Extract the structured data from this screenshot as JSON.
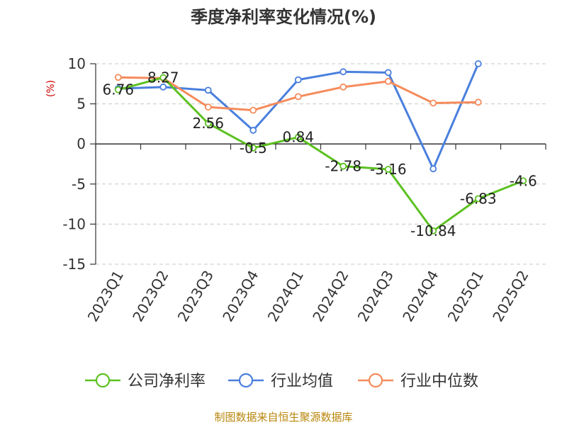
{
  "chart_data": {
    "type": "line",
    "title": "季度净利率变化情况(%)",
    "ylabel": "(%)",
    "xlabel": "",
    "ylim": [
      -15,
      10
    ],
    "yticks": [
      10,
      5,
      0,
      -5,
      -10,
      -15
    ],
    "grid": true,
    "legend_position": "bottom",
    "categories": [
      "2023Q1",
      "2023Q2",
      "2023Q3",
      "2023Q4",
      "2024Q1",
      "2024Q2",
      "2024Q3",
      "2024Q4",
      "2025Q1",
      "2025Q2"
    ],
    "series": [
      {
        "name": "公司净利率",
        "color": "#5cc121",
        "values": [
          6.76,
          8.27,
          2.56,
          -0.5,
          0.84,
          -2.78,
          -3.16,
          -10.84,
          -6.83,
          -4.6
        ],
        "labels": [
          "6.76",
          "8.27",
          "2.56",
          "-0.5",
          "0.84",
          "-2.78",
          "-3.16",
          "-10.84",
          "-6.83",
          "-4.6"
        ]
      },
      {
        "name": "行业均值",
        "color": "#4a7fdd",
        "values": [
          6.9,
          7.1,
          6.7,
          1.7,
          8.0,
          9.0,
          8.9,
          -3.1,
          10.0,
          null
        ]
      },
      {
        "name": "行业中位数",
        "color": "#f58b5b",
        "values": [
          8.3,
          8.2,
          4.6,
          4.2,
          5.9,
          7.1,
          7.8,
          5.1,
          5.2,
          null
        ]
      }
    ],
    "source": "制图数据来自恒生聚源数据库"
  }
}
